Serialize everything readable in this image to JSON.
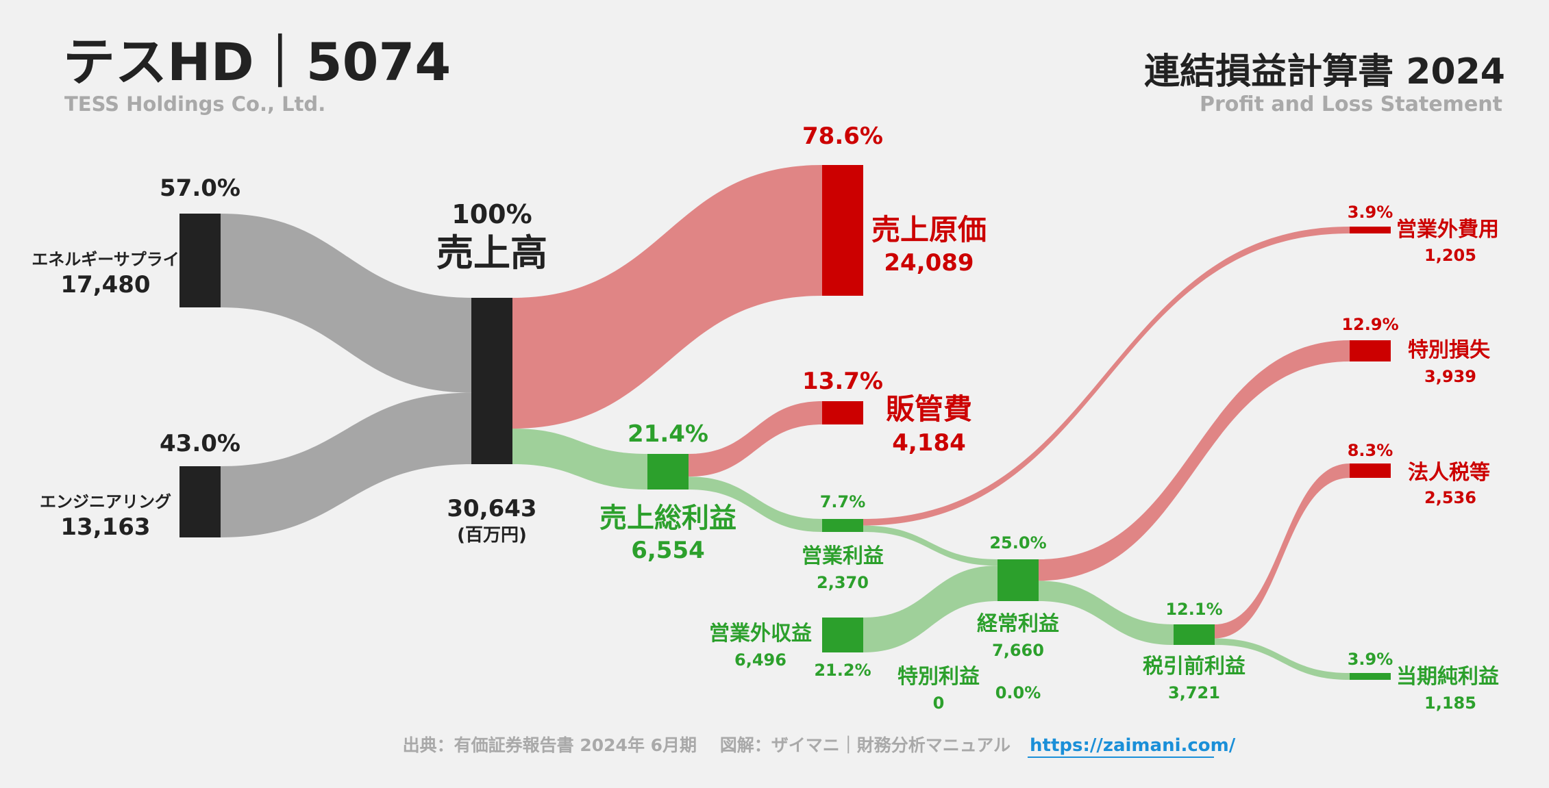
{
  "header": {
    "title": "テスHD｜5074",
    "subtitle": "TESS Holdings Co., Ltd.",
    "statement_title": "連結損益計算書 2024",
    "statement_subtitle": "Profit and Loss Statement"
  },
  "footer": {
    "source": "出典：有価証券報告書 2024年 6月期　 図解：ザイマニ｜財務分析マニュアル",
    "link": "https://zaimani.com/"
  },
  "colors": {
    "source_node": "#222222",
    "gray_flow": "#a6a6a6",
    "red_node": "#cc0000",
    "red_flow": "#e08585",
    "green_node": "#2ca02c",
    "green_flow": "#9fd09a",
    "link": "#1a8fd8"
  },
  "chart_data": {
    "type": "sankey",
    "unit": "(百万円)",
    "nodes": [
      {
        "id": "energy",
        "label": "エネルギーサプライ",
        "value": "17,480",
        "pct": "57.0%",
        "kind": "source"
      },
      {
        "id": "eng",
        "label": "エンジニアリング",
        "value": "13,163",
        "pct": "43.0%",
        "kind": "source"
      },
      {
        "id": "sales",
        "label": "売上高",
        "value": "30,643",
        "pct": "100%",
        "kind": "total"
      },
      {
        "id": "cogs",
        "label": "売上原価",
        "value": "24,089",
        "pct": "78.6%",
        "kind": "cost"
      },
      {
        "id": "gross",
        "label": "売上総利益",
        "value": "6,554",
        "pct": "21.4%",
        "kind": "profit"
      },
      {
        "id": "sga",
        "label": "販管費",
        "value": "4,184",
        "pct": "13.7%",
        "kind": "cost"
      },
      {
        "id": "op",
        "label": "営業利益",
        "value": "2,370",
        "pct": "7.7%",
        "kind": "profit"
      },
      {
        "id": "nonop_inc",
        "label": "営業外収益",
        "value": "6,496",
        "pct": "21.2%",
        "kind": "profit"
      },
      {
        "id": "nonop_exp",
        "label": "営業外費用",
        "value": "1,205",
        "pct": "3.9%",
        "kind": "cost"
      },
      {
        "id": "ord",
        "label": "経常利益",
        "value": "7,660",
        "pct": "25.0%",
        "kind": "profit"
      },
      {
        "id": "sp_gain",
        "label": "特別利益",
        "value": "0",
        "pct": "0.0%",
        "kind": "profit"
      },
      {
        "id": "sp_loss",
        "label": "特別損失",
        "value": "3,939",
        "pct": "12.9%",
        "kind": "cost"
      },
      {
        "id": "pretax",
        "label": "税引前利益",
        "value": "3,721",
        "pct": "12.1%",
        "kind": "profit"
      },
      {
        "id": "tax",
        "label": "法人税等",
        "value": "2,536",
        "pct": "8.3%",
        "kind": "cost"
      },
      {
        "id": "net",
        "label": "当期純利益",
        "value": "1,185",
        "pct": "3.9%",
        "kind": "profit"
      }
    ],
    "links": [
      {
        "from": "energy",
        "to": "sales",
        "value": 17480
      },
      {
        "from": "eng",
        "to": "sales",
        "value": 13163
      },
      {
        "from": "sales",
        "to": "cogs",
        "value": 24089
      },
      {
        "from": "sales",
        "to": "gross",
        "value": 6554
      },
      {
        "from": "gross",
        "to": "sga",
        "value": 4184
      },
      {
        "from": "gross",
        "to": "op",
        "value": 2370
      },
      {
        "from": "op",
        "to": "nonop_exp",
        "value": 1205
      },
      {
        "from": "op",
        "to": "ord",
        "value": 1165
      },
      {
        "from": "nonop_inc",
        "to": "ord",
        "value": 6496
      },
      {
        "from": "ord",
        "to": "sp_loss",
        "value": 3939
      },
      {
        "from": "ord",
        "to": "pretax",
        "value": 3721
      },
      {
        "from": "pretax",
        "to": "tax",
        "value": 2536
      },
      {
        "from": "pretax",
        "to": "net",
        "value": 1185
      }
    ]
  }
}
